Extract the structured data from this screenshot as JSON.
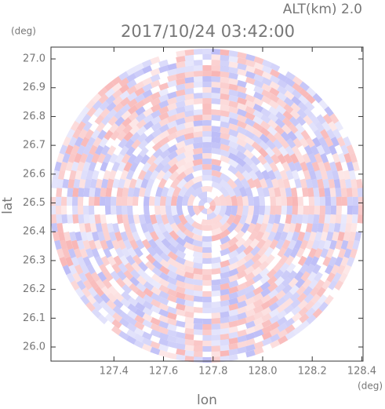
{
  "chart_data": {
    "type": "radar-map",
    "title": "2017/10/24 03:42:00",
    "altitude_label": "ALT(km) 2.0",
    "y_unit": "(deg)",
    "x_unit": "(deg)",
    "xlabel": "lon",
    "ylabel": "lat",
    "xlim": [
      127.146,
      128.405
    ],
    "ylim": [
      25.951,
      27.041
    ],
    "xticks": [
      127.4,
      127.6,
      127.8,
      {
        "value": 128.0,
        "label": "128.0"
      },
      128.2,
      128.4
    ],
    "yticks": [
      {
        "value": 26.0,
        "label": "26.0"
      },
      26.1,
      26.2,
      26.3,
      26.4,
      26.5,
      26.6,
      26.7,
      26.8,
      26.9,
      {
        "value": 27.0,
        "label": "27.0"
      }
    ]
  }
}
